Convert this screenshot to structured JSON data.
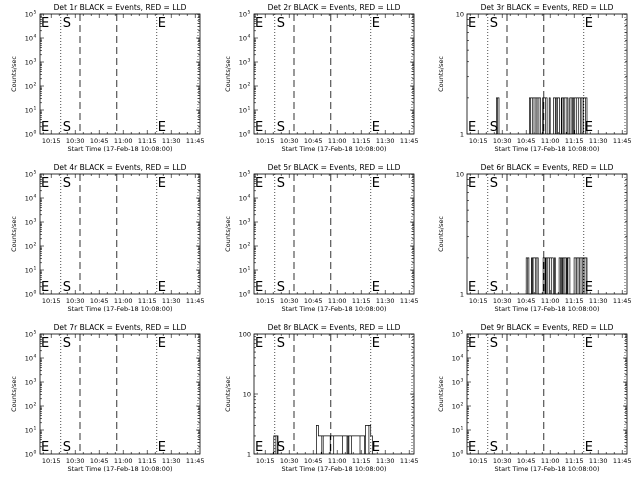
{
  "chart_data": [
    {
      "type": "line",
      "title": "Det 1r BLACK = Events, RED = LLD",
      "xlabel": "Start Time (17-Feb-18 10:08:00)",
      "ylabel": "Counts/sec",
      "yscale": "log",
      "ylim": [
        1,
        100000
      ],
      "ytick_labels": [
        {
          "base": "10",
          "exp": "0"
        },
        {
          "base": "10",
          "exp": "1"
        },
        {
          "base": "10",
          "exp": "2"
        },
        {
          "base": "10",
          "exp": "3"
        },
        {
          "base": "10",
          "exp": "4"
        },
        {
          "base": "10",
          "exp": "5"
        }
      ],
      "x_ticks": [
        "10:15",
        "10:30",
        "10:45",
        "11:00",
        "11:15",
        "11:30",
        "11:45"
      ],
      "markers": {
        "start_label": "S",
        "end_label": "E",
        "edge_label": "E"
      },
      "series": []
    },
    {
      "type": "line",
      "title": "Det 2r BLACK = Events, RED = LLD",
      "xlabel": "Start Time (17-Feb-18 10:08:00)",
      "ylabel": "Counts/sec",
      "yscale": "log",
      "ylim": [
        1,
        100000
      ],
      "ytick_labels": [
        {
          "base": "10",
          "exp": "0"
        },
        {
          "base": "10",
          "exp": "1"
        },
        {
          "base": "10",
          "exp": "2"
        },
        {
          "base": "10",
          "exp": "3"
        },
        {
          "base": "10",
          "exp": "4"
        },
        {
          "base": "10",
          "exp": "5"
        }
      ],
      "x_ticks": [
        "10:15",
        "10:30",
        "10:45",
        "11:00",
        "11:15",
        "11:30",
        "11:45"
      ],
      "markers": {
        "start_label": "S",
        "end_label": "E",
        "edge_label": "E"
      },
      "series": []
    },
    {
      "type": "line",
      "title": "Det 3r BLACK = Events, RED = LLD",
      "xlabel": "Start Time (17-Feb-18 10:08:00)",
      "ylabel": "Counts/sec",
      "yscale": "log",
      "ylim": [
        1,
        10
      ],
      "ytick_labels": [
        {
          "base": "1",
          "exp": ""
        },
        {
          "base": "10",
          "exp": ""
        }
      ],
      "x_ticks": [
        "10:15",
        "10:30",
        "10:45",
        "11:00",
        "11:15",
        "11:30",
        "11:45"
      ],
      "markers": {
        "start_label": "S",
        "end_label": "E",
        "edge_label": "E"
      },
      "series": [
        {
          "kind": "bursts",
          "low": 1,
          "high": 2,
          "ranges": [
            [
              "10:26",
              "10:28"
            ],
            [
              "10:47",
              "11:00"
            ],
            [
              "11:02",
              "11:23"
            ]
          ]
        }
      ]
    },
    {
      "type": "line",
      "title": "Det 4r BLACK = Events, RED = LLD",
      "xlabel": "Start Time (17-Feb-18 10:08:00)",
      "ylabel": "Counts/sec",
      "yscale": "log",
      "ylim": [
        1,
        100000
      ],
      "ytick_labels": [
        {
          "base": "10",
          "exp": "0"
        },
        {
          "base": "10",
          "exp": "1"
        },
        {
          "base": "10",
          "exp": "2"
        },
        {
          "base": "10",
          "exp": "3"
        },
        {
          "base": "10",
          "exp": "4"
        },
        {
          "base": "10",
          "exp": "5"
        }
      ],
      "x_ticks": [
        "10:15",
        "10:30",
        "10:45",
        "11:00",
        "11:15",
        "11:30",
        "11:45"
      ],
      "markers": {
        "start_label": "S",
        "end_label": "E",
        "edge_label": "E"
      },
      "series": []
    },
    {
      "type": "line",
      "title": "Det 5r BLACK = Events, RED = LLD",
      "xlabel": "Start Time (17-Feb-18 10:08:00)",
      "ylabel": "Counts/sec",
      "yscale": "log",
      "ylim": [
        1,
        100000
      ],
      "ytick_labels": [
        {
          "base": "10",
          "exp": "0"
        },
        {
          "base": "10",
          "exp": "1"
        },
        {
          "base": "10",
          "exp": "2"
        },
        {
          "base": "10",
          "exp": "3"
        },
        {
          "base": "10",
          "exp": "4"
        },
        {
          "base": "10",
          "exp": "5"
        }
      ],
      "x_ticks": [
        "10:15",
        "10:30",
        "10:45",
        "11:00",
        "11:15",
        "11:30",
        "11:45"
      ],
      "markers": {
        "start_label": "S",
        "end_label": "E",
        "edge_label": "E"
      },
      "series": []
    },
    {
      "type": "line",
      "title": "Det 6r BLACK = Events, RED = LLD",
      "xlabel": "Start Time (17-Feb-18 10:08:00)",
      "ylabel": "Counts/sec",
      "yscale": "log",
      "ylim": [
        1,
        10
      ],
      "ytick_labels": [
        {
          "base": "1",
          "exp": ""
        },
        {
          "base": "10",
          "exp": ""
        }
      ],
      "x_ticks": [
        "10:15",
        "10:30",
        "10:45",
        "11:00",
        "11:15",
        "11:30",
        "11:45"
      ],
      "markers": {
        "start_label": "S",
        "end_label": "E",
        "edge_label": "E"
      },
      "series": [
        {
          "kind": "bursts",
          "low": 1,
          "high": 2,
          "ranges": [
            [
              "10:45",
              "11:23"
            ]
          ]
        }
      ]
    },
    {
      "type": "line",
      "title": "Det 7r BLACK = Events, RED = LLD",
      "xlabel": "Start Time (17-Feb-18 10:08:00)",
      "ylabel": "Counts/sec",
      "yscale": "log",
      "ylim": [
        1,
        100000
      ],
      "ytick_labels": [
        {
          "base": "10",
          "exp": "0"
        },
        {
          "base": "10",
          "exp": "1"
        },
        {
          "base": "10",
          "exp": "2"
        },
        {
          "base": "10",
          "exp": "3"
        },
        {
          "base": "10",
          "exp": "4"
        },
        {
          "base": "10",
          "exp": "5"
        }
      ],
      "x_ticks": [
        "10:15",
        "10:30",
        "10:45",
        "11:00",
        "11:15",
        "11:30",
        "11:45"
      ],
      "markers": {
        "start_label": "S",
        "end_label": "E",
        "edge_label": "E"
      },
      "series": []
    },
    {
      "type": "line",
      "title": "Det 8r BLACK = Events, RED = LLD",
      "xlabel": "Start Time (17-Feb-18 10:08:00)",
      "ylabel": "Counts/sec",
      "yscale": "log",
      "ylim": [
        1,
        100
      ],
      "ytick_labels": [
        {
          "base": "1",
          "exp": ""
        },
        {
          "base": "10",
          "exp": ""
        },
        {
          "base": "100",
          "exp": ""
        }
      ],
      "x_ticks": [
        "10:15",
        "10:30",
        "10:45",
        "11:00",
        "11:15",
        "11:30",
        "11:45"
      ],
      "markers": {
        "start_label": "S",
        "end_label": "E",
        "edge_label": "E"
      },
      "series": [
        {
          "kind": "bursts",
          "low": 1,
          "high": 2,
          "ranges": [
            [
              "10:18",
              "10:23"
            ]
          ]
        },
        {
          "kind": "plateau",
          "low": 1,
          "high": 2,
          "peak": 3,
          "ranges": [
            [
              "10:47",
              "11:22"
            ]
          ]
        }
      ]
    },
    {
      "type": "line",
      "title": "Det 9r BLACK = Events, RED = LLD",
      "xlabel": "Start Time (17-Feb-18 10:08:00)",
      "ylabel": "Counts/sec",
      "yscale": "log",
      "ylim": [
        1,
        100000
      ],
      "ytick_labels": [
        {
          "base": "10",
          "exp": "0"
        },
        {
          "base": "10",
          "exp": "1"
        },
        {
          "base": "10",
          "exp": "2"
        },
        {
          "base": "10",
          "exp": "3"
        },
        {
          "base": "10",
          "exp": "4"
        },
        {
          "base": "10",
          "exp": "5"
        }
      ],
      "x_ticks": [
        "10:15",
        "10:30",
        "10:45",
        "11:00",
        "11:15",
        "11:30",
        "11:45"
      ],
      "markers": {
        "start_label": "S",
        "end_label": "E",
        "edge_label": "E"
      },
      "series": []
    }
  ],
  "x_axis": {
    "start": "10:08",
    "end": "11:48",
    "start_line": "10:21",
    "mid_lines": [
      "10:33",
      "10:56"
    ],
    "end_line": "11:21"
  }
}
